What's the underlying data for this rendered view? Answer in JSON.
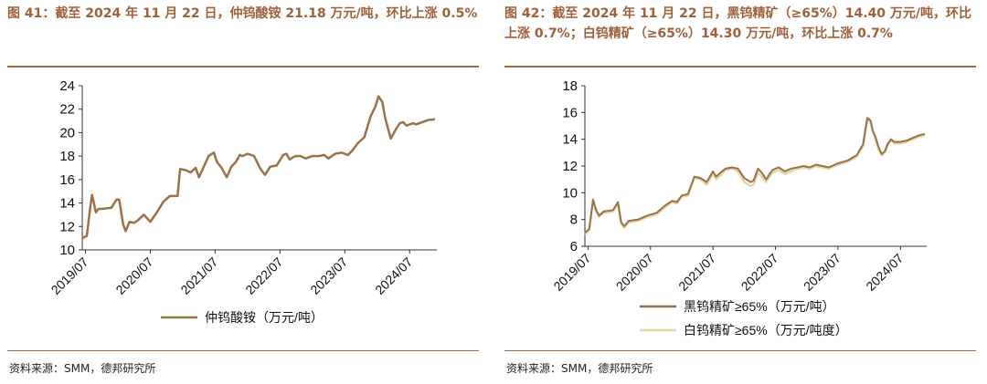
{
  "colors": {
    "title": "#a0603a",
    "rule": "#a06a45",
    "line_dark": "#9c7146",
    "line_light": "#e4d5a6",
    "axis": "#333333"
  },
  "panels": [
    {
      "title": "图 41：截至 2024 年 11 月 22 日，仲钨酸铵 21.18 万元/吨，环比上涨 0.5%",
      "source": "资料来源：SMM，德邦研究所"
    },
    {
      "title": "图 42：截至 2024 年 11 月 22 日，黑钨精矿（≥65%）14.40 万元/吨，环比上涨 0.7%；白钨精矿（≥65%）14.30 万元/吨，环比上涨 0.7%",
      "source": "资料来源：SMM，德邦研究所"
    }
  ],
  "chart_data": [
    {
      "type": "line",
      "title": "截至 2024 年 11 月 22 日，仲钨酸铵 21.18 万元/吨，环比上涨 0.5%",
      "xlabel": "",
      "ylabel": "",
      "ylim": [
        10,
        24
      ],
      "yticks": [
        10,
        12,
        14,
        16,
        18,
        20,
        22,
        24
      ],
      "xticks": [
        "2019/07",
        "2020/07",
        "2021/07",
        "2022/07",
        "2023/07",
        "2024/07"
      ],
      "xlim": [
        2019.45,
        2024.92
      ],
      "legend": "bottom-center",
      "series": [
        {
          "name": "仲钨酸铵（万元/吨）",
          "color": "#9c7146",
          "x": [
            2019.45,
            2019.52,
            2019.56,
            2019.6,
            2019.63,
            2019.66,
            2019.7,
            2019.75,
            2019.9,
            2019.98,
            2020.02,
            2020.08,
            2020.12,
            2020.18,
            2020.25,
            2020.3,
            2020.4,
            2020.5,
            2020.6,
            2020.7,
            2020.8,
            2020.88,
            2020.92,
            2020.96,
            2021.05,
            2021.12,
            2021.2,
            2021.25,
            2021.3,
            2021.4,
            2021.48,
            2021.53,
            2021.6,
            2021.68,
            2021.75,
            2021.82,
            2021.88,
            2021.92,
            2022.0,
            2022.1,
            2022.2,
            2022.27,
            2022.35,
            2022.45,
            2022.55,
            2022.6,
            2022.65,
            2022.7,
            2022.75,
            2022.82,
            2022.9,
            2023.0,
            2023.1,
            2023.18,
            2023.25,
            2023.35,
            2023.45,
            2023.55,
            2023.62,
            2023.7,
            2023.8,
            2023.9,
            2023.97,
            2024.02,
            2024.08,
            2024.12,
            2024.17,
            2024.21,
            2024.25,
            2024.3,
            2024.35,
            2024.4,
            2024.45,
            2024.5,
            2024.55,
            2024.6,
            2024.65,
            2024.7,
            2024.75,
            2024.8,
            2024.85,
            2024.89
          ],
          "values": [
            11.0,
            11.2,
            13.0,
            14.7,
            14.0,
            13.2,
            13.5,
            13.5,
            13.6,
            14.3,
            14.3,
            12.2,
            11.6,
            12.4,
            12.3,
            12.5,
            13.0,
            12.4,
            13.2,
            14.1,
            14.6,
            14.6,
            14.6,
            16.9,
            16.8,
            16.6,
            17.0,
            16.2,
            16.8,
            18.0,
            18.3,
            17.5,
            17.0,
            16.2,
            17.1,
            17.5,
            18.1,
            18.0,
            18.2,
            18.0,
            16.9,
            16.4,
            17.1,
            17.2,
            18.1,
            18.2,
            17.7,
            17.9,
            18.0,
            18.0,
            17.8,
            18.0,
            18.0,
            18.1,
            17.8,
            18.2,
            18.3,
            18.1,
            18.5,
            19.1,
            19.6,
            21.4,
            22.2,
            23.1,
            22.6,
            21.3,
            20.3,
            19.5,
            19.9,
            20.4,
            20.8,
            20.9,
            20.6,
            20.7,
            20.8,
            20.7,
            20.8,
            20.9,
            21.0,
            21.1,
            21.1,
            21.18
          ]
        }
      ]
    },
    {
      "type": "line",
      "title": "截至 2024 年 11 月 22 日，黑钨精矿（≥65%）14.40 万元/吨，环比上涨 0.7%；白钨精矿（≥65%）14.30 万元/吨，环比上涨 0.7%",
      "xlabel": "",
      "ylabel": "",
      "ylim": [
        6,
        18
      ],
      "yticks": [
        6,
        8,
        10,
        12,
        14,
        16,
        18
      ],
      "xticks": [
        "2019/07",
        "2020/07",
        "2021/07",
        "2022/07",
        "2023/07",
        "2024/07"
      ],
      "xlim": [
        2019.45,
        2024.92
      ],
      "legend": "bottom-center",
      "series": [
        {
          "name": "黑钨精矿≥65%（万元/吨）",
          "color": "#9c7146",
          "x": [
            2019.45,
            2019.52,
            2019.58,
            2019.63,
            2019.68,
            2019.75,
            2019.9,
            2019.98,
            2020.03,
            2020.08,
            2020.15,
            2020.3,
            2020.45,
            2020.6,
            2020.75,
            2020.85,
            2020.92,
            2021.0,
            2021.1,
            2021.2,
            2021.3,
            2021.4,
            2021.5,
            2021.55,
            2021.62,
            2021.7,
            2021.8,
            2021.9,
            2022.0,
            2022.1,
            2022.15,
            2022.22,
            2022.28,
            2022.35,
            2022.45,
            2022.55,
            2022.65,
            2022.75,
            2022.85,
            2022.95,
            2023.05,
            2023.15,
            2023.25,
            2023.35,
            2023.5,
            2023.65,
            2023.8,
            2023.9,
            2023.97,
            2024.02,
            2024.06,
            2024.1,
            2024.15,
            2024.2,
            2024.25,
            2024.3,
            2024.35,
            2024.4,
            2024.5,
            2024.6,
            2024.7,
            2024.8,
            2024.89
          ],
          "values": [
            7.0,
            7.3,
            9.5,
            8.7,
            8.3,
            8.6,
            8.7,
            9.3,
            7.8,
            7.5,
            7.9,
            8.0,
            8.3,
            8.5,
            9.1,
            9.4,
            9.3,
            9.8,
            9.9,
            11.2,
            11.1,
            10.8,
            11.6,
            11.2,
            11.5,
            11.8,
            11.9,
            11.8,
            11.1,
            10.8,
            10.9,
            11.8,
            11.5,
            11.0,
            11.7,
            11.9,
            11.6,
            11.8,
            11.9,
            12.0,
            11.9,
            12.1,
            12.0,
            11.9,
            12.2,
            12.4,
            12.8,
            13.6,
            15.6,
            15.4,
            14.6,
            14.2,
            13.4,
            12.9,
            13.1,
            13.7,
            14.0,
            13.8,
            13.8,
            13.9,
            14.1,
            14.3,
            14.4
          ]
        },
        {
          "name": "白钨精矿≥65%（万元/吨度）",
          "color": "#e4d5a6",
          "x": [
            2019.45,
            2019.52,
            2019.58,
            2019.63,
            2019.68,
            2019.75,
            2019.9,
            2019.98,
            2020.03,
            2020.08,
            2020.15,
            2020.3,
            2020.45,
            2020.6,
            2020.75,
            2020.85,
            2020.92,
            2021.0,
            2021.1,
            2021.2,
            2021.3,
            2021.4,
            2021.5,
            2021.55,
            2021.62,
            2021.7,
            2021.8,
            2021.9,
            2022.0,
            2022.1,
            2022.15,
            2022.22,
            2022.28,
            2022.35,
            2022.45,
            2022.55,
            2022.65,
            2022.75,
            2022.85,
            2022.95,
            2023.05,
            2023.15,
            2023.25,
            2023.35,
            2023.5,
            2023.65,
            2023.8,
            2023.9,
            2023.97,
            2024.02,
            2024.06,
            2024.1,
            2024.15,
            2024.2,
            2024.25,
            2024.3,
            2024.35,
            2024.4,
            2024.5,
            2024.6,
            2024.7,
            2024.8,
            2024.89
          ],
          "values": [
            6.9,
            7.2,
            9.4,
            8.6,
            8.2,
            8.5,
            8.6,
            9.2,
            7.7,
            7.4,
            7.8,
            7.9,
            8.2,
            8.4,
            9.0,
            9.3,
            9.2,
            9.7,
            9.8,
            11.1,
            11.0,
            10.6,
            11.4,
            11.0,
            11.3,
            11.7,
            11.8,
            11.6,
            10.8,
            10.5,
            10.6,
            11.5,
            11.2,
            10.8,
            11.5,
            11.7,
            11.4,
            11.6,
            11.8,
            11.9,
            11.8,
            12.0,
            11.9,
            11.8,
            12.1,
            12.3,
            12.7,
            13.5,
            15.5,
            15.3,
            14.5,
            14.0,
            13.2,
            12.8,
            13.0,
            13.6,
            13.9,
            13.7,
            13.7,
            13.8,
            14.0,
            14.2,
            14.3
          ]
        }
      ]
    }
  ]
}
